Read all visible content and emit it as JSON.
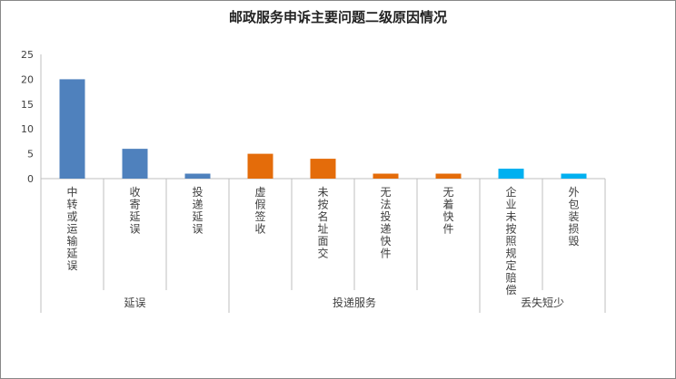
{
  "chart_data": {
    "type": "bar",
    "title": "邮政服务申诉主要问题二级原因情况",
    "categories": [
      "中转或运输延误",
      "收寄延误",
      "投递延误",
      "虚假签收",
      "未按名址面交",
      "无法投递快件",
      "无着快件",
      "企业未按照规定赔偿",
      "外包装损毁"
    ],
    "values": [
      20,
      6,
      1,
      5,
      4,
      1,
      1,
      2,
      1
    ],
    "groups": [
      {
        "label": "延误",
        "count": 3,
        "color": "#4f81bd"
      },
      {
        "label": "投递服务",
        "count": 4,
        "color": "#e46c0a"
      },
      {
        "label": "丢失短少",
        "count": 2,
        "color": "#00b0f0"
      }
    ],
    "ylim": [
      0,
      25
    ],
    "yticks": [
      "0",
      "5",
      "10",
      "15",
      "20",
      "25"
    ],
    "grid": false,
    "legend": "none"
  }
}
